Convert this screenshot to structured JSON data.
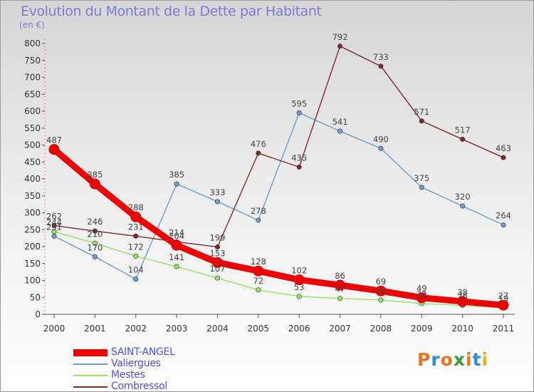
{
  "title": "Evolution du Montant de la Dette par Habitant",
  "unit": "(en €)",
  "logo": {
    "text": "Proxiti",
    "letters": [
      "P",
      "r",
      "o",
      "x",
      "i",
      "t",
      "i"
    ],
    "colors": [
      "#e8741e",
      "#2f8ed8",
      "#e8741e",
      "#3a9a3a",
      "#e8741e",
      "#2f8ed8",
      "#e8b21e"
    ]
  },
  "chart_data": {
    "type": "line",
    "title": "Evolution du Montant de la Dette par Habitant",
    "ylabel": "(en €)",
    "xlabel": "",
    "x": [
      "2000",
      "2001",
      "2002",
      "2003",
      "2004",
      "2005",
      "2006",
      "2007",
      "2008",
      "2009",
      "2010",
      "2011"
    ],
    "ylim": [
      0,
      800
    ],
    "yticks": [
      0,
      50,
      100,
      150,
      200,
      250,
      300,
      350,
      400,
      450,
      500,
      550,
      600,
      650,
      700,
      750,
      800
    ],
    "grid": false,
    "legend": "bottom-left",
    "series": [
      {
        "name": "SAINT-ANGEL",
        "color": "#ee0000",
        "values": [
          487,
          385,
          288,
          204,
          153,
          128,
          102,
          86,
          69,
          49,
          38,
          27
        ]
      },
      {
        "name": "Valiergues",
        "color": "#6a9fd0",
        "values": [
          231,
          170,
          104,
          385,
          333,
          278,
          595,
          541,
          490,
          375,
          320,
          264
        ]
      },
      {
        "name": "Mestes",
        "color": "#99e066",
        "values": [
          244,
          210,
          172,
          141,
          107,
          72,
          53,
          47,
          42,
          32,
          26,
          19
        ]
      },
      {
        "name": "Combressol",
        "color": "#7a2b2b",
        "values": [
          262,
          246,
          231,
          214,
          199,
          476,
          435,
          792,
          733,
          571,
          517,
          463
        ]
      }
    ]
  }
}
